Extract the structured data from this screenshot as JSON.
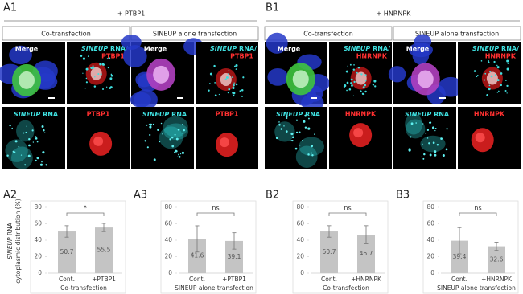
{
  "panels": [
    {
      "label": "A1",
      "condition": "+ PTBP1",
      "groups": [
        {
          "title": "Co-transfection"
        },
        {
          "title": "SINEUP alone transfection"
        }
      ],
      "image_labels": {
        "merge": "Merge",
        "rna_italic": "SINEUP",
        "overlay_suffix": "RNA/",
        "rna_suffix": "RNA",
        "protein": "PTBP1"
      }
    },
    {
      "label": "B1",
      "condition": "+ HNRNPK",
      "groups": [
        {
          "title": "Co-transfection"
        },
        {
          "title": "SINEUP alone transfection"
        }
      ],
      "image_labels": {
        "merge": "Merge",
        "rna_italic": "SINEUP",
        "overlay_suffix": "RNA/",
        "rna_suffix": "RNA",
        "protein": "HNRNPK"
      }
    }
  ],
  "chart_data": [
    {
      "type": "bar",
      "panel": "A2",
      "ylabel": {
        "italic": "SINEUP",
        "rest": "RNA",
        "line2": "cytoplasmic distribution (%)"
      },
      "categories": [
        "Cont.",
        "+PTBP1"
      ],
      "values": [
        50.7,
        55.5
      ],
      "errors": [
        7,
        5
      ],
      "significance": "*",
      "xlabel": "Co-transfection",
      "ylim": [
        0,
        80
      ],
      "yticks": [
        0,
        20,
        40,
        60,
        80
      ],
      "color": "#c4c4c4"
    },
    {
      "type": "bar",
      "panel": "A3",
      "categories": [
        "Cont.",
        "+PTBP1"
      ],
      "values": [
        41.6,
        39.1
      ],
      "errors": [
        16,
        10
      ],
      "significance": "ns",
      "xlabel": "SINEUP alone transfection",
      "ylim": [
        0,
        80
      ],
      "yticks": [
        0,
        20,
        40,
        60,
        80
      ],
      "color": "#c4c4c4"
    },
    {
      "type": "bar",
      "panel": "B2",
      "categories": [
        "Cont.",
        "+HNRNPK"
      ],
      "values": [
        50.7,
        46.7
      ],
      "errors": [
        7,
        11
      ],
      "significance": "ns",
      "xlabel": "Co-transfection",
      "ylim": [
        0,
        80
      ],
      "yticks": [
        0,
        20,
        40,
        60,
        80
      ],
      "color": "#c4c4c4"
    },
    {
      "type": "bar",
      "panel": "B3",
      "categories": [
        "Cont.",
        "+HNRNPK"
      ],
      "values": [
        39.4,
        32.6
      ],
      "errors": [
        16,
        5
      ],
      "significance": "ns",
      "xlabel": "SINEUP alone transfection",
      "ylim": [
        0,
        80
      ],
      "yticks": [
        0,
        20,
        40,
        60,
        80
      ],
      "color": "#c4c4c4"
    }
  ]
}
